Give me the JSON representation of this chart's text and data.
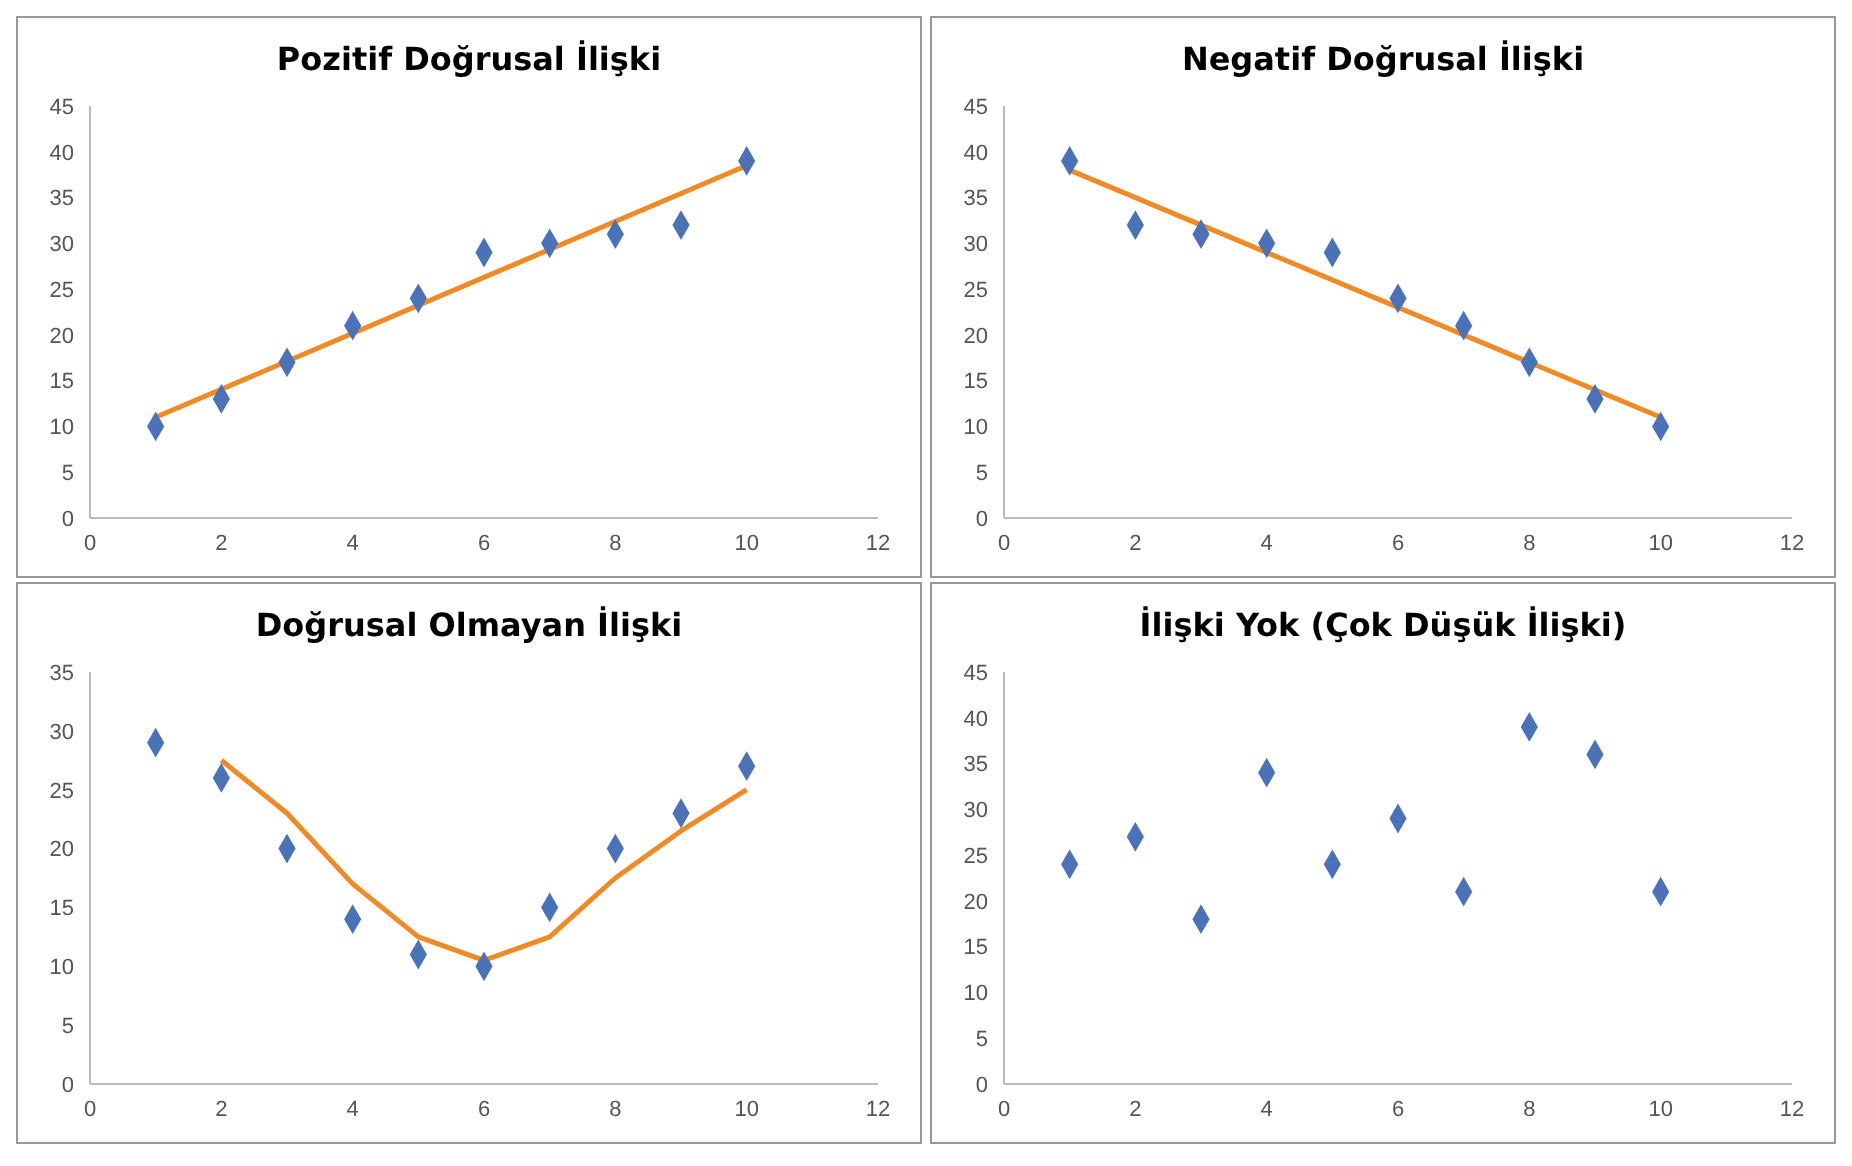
{
  "chart_data": [
    {
      "type": "scatter",
      "title": "Pozitif Doğrusal İlişki",
      "xlim": [
        0,
        12
      ],
      "xticks": [
        0,
        2,
        4,
        6,
        8,
        10,
        12
      ],
      "ylim": [
        0,
        45
      ],
      "yticks": [
        0,
        5,
        10,
        15,
        20,
        25,
        30,
        35,
        40,
        45
      ],
      "series": [
        {
          "color": "#4a72b8",
          "marker": "diamond",
          "x": [
            1,
            2,
            3,
            4,
            5,
            6,
            7,
            8,
            9,
            10
          ],
          "values": [
            10,
            13,
            17,
            21,
            24,
            29,
            30,
            31,
            32,
            39
          ]
        },
        {
          "type": "line",
          "marker": "none",
          "color": "#f08a24",
          "x": [
            1,
            10
          ],
          "values": [
            11,
            38.5
          ]
        }
      ]
    },
    {
      "type": "scatter",
      "title": "Negatif Doğrusal İlişki",
      "xlim": [
        0,
        12
      ],
      "xticks": [
        0,
        2,
        4,
        6,
        8,
        10,
        12
      ],
      "ylim": [
        0,
        45
      ],
      "yticks": [
        0,
        5,
        10,
        15,
        20,
        25,
        30,
        35,
        40,
        45
      ],
      "series": [
        {
          "color": "#4a72b8",
          "marker": "diamond",
          "x": [
            1,
            2,
            3,
            4,
            5,
            6,
            7,
            8,
            9,
            10
          ],
          "values": [
            39,
            32,
            31,
            30,
            29,
            24,
            21,
            17,
            13,
            10
          ]
        },
        {
          "type": "line",
          "marker": "none",
          "color": "#f08a24",
          "x": [
            1,
            10
          ],
          "values": [
            38,
            11
          ]
        }
      ]
    },
    {
      "type": "scatter",
      "title": "Doğrusal Olmayan İlişki",
      "xlim": [
        0,
        12
      ],
      "xticks": [
        0,
        2,
        4,
        6,
        8,
        10,
        12
      ],
      "ylim": [
        0,
        35
      ],
      "yticks": [
        0,
        5,
        10,
        15,
        20,
        25,
        30,
        35
      ],
      "series": [
        {
          "color": "#4a72b8",
          "marker": "diamond",
          "x": [
            1,
            2,
            3,
            4,
            5,
            6,
            7,
            8,
            9,
            10
          ],
          "values": [
            29,
            26,
            20,
            14,
            11,
            10,
            15,
            20,
            23,
            27
          ]
        },
        {
          "type": "line",
          "marker": "none",
          "color": "#f08a24",
          "x": [
            2,
            3,
            4,
            5,
            6,
            7,
            8,
            9,
            10
          ],
          "values": [
            27.5,
            23,
            17,
            12.5,
            10.5,
            12.5,
            17.5,
            21.5,
            25
          ]
        }
      ]
    },
    {
      "type": "scatter",
      "title": "İlişki Yok (Çok Düşük İlişki)",
      "xlim": [
        0,
        12
      ],
      "xticks": [
        0,
        2,
        4,
        6,
        8,
        10,
        12
      ],
      "ylim": [
        0,
        45
      ],
      "yticks": [
        0,
        5,
        10,
        15,
        20,
        25,
        30,
        35,
        40,
        45
      ],
      "series": [
        {
          "color": "#4a72b8",
          "marker": "diamond",
          "x": [
            1,
            2,
            3,
            4,
            5,
            6,
            7,
            8,
            9,
            10
          ],
          "values": [
            24,
            27,
            18,
            34,
            24,
            29,
            21,
            39,
            36,
            21
          ]
        }
      ]
    }
  ]
}
